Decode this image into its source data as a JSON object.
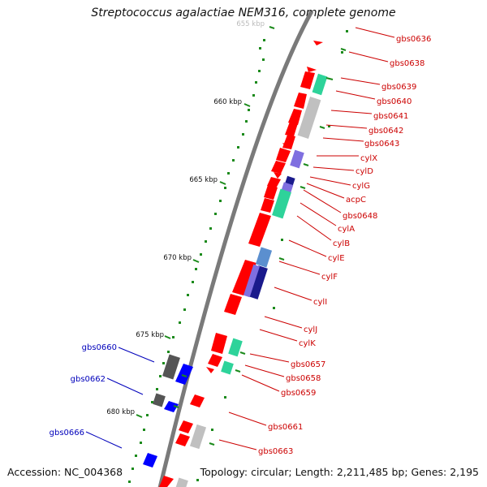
{
  "title": "Streptococcus agalactiae NEM316, complete genome",
  "accession": "Accession: NC_004368",
  "topology": "Topology: circular; Length: 2,211,485 bp; Genes: 2,195",
  "colors": {
    "backbone": "#808080",
    "forward_gene": "#ff0000",
    "reverse_gene": "#0000ff",
    "gc_marks": "#1b8a1b",
    "label_right": "#cc0000",
    "label_left": "#0000bb",
    "cds_function_green": "#2ed39a",
    "cds_function_grey": "#c0c0c0",
    "cds_function_purple": "#7f6fe0",
    "cds_function_navy": "#1a1a8c",
    "cds_function_steel": "#5b8fcf",
    "cds_function_dark": "#555555"
  },
  "scale": {
    "ticks": [
      {
        "label": "655 kbp",
        "faded": true
      },
      {
        "label": "660 kbp"
      },
      {
        "label": "665 kbp"
      },
      {
        "label": "670 kbp"
      },
      {
        "label": "675 kbp"
      },
      {
        "label": "680 kbp"
      }
    ]
  },
  "genes_right": [
    "gbs0636",
    "gbs0638",
    "gbs0639",
    "gbs0640",
    "gbs0641",
    "gbs0642",
    "gbs0643",
    "cylX",
    "cylD",
    "cylG",
    "acpC",
    "gbs0648",
    "cylA",
    "cylB",
    "cylE",
    "cylF",
    "cylI",
    "cylJ",
    "cylK",
    "gbs0657",
    "gbs0658",
    "gbs0659",
    "gbs0661",
    "gbs0663"
  ],
  "genes_left": [
    "gbs0660",
    "gbs0662",
    "gbs0666"
  ]
}
